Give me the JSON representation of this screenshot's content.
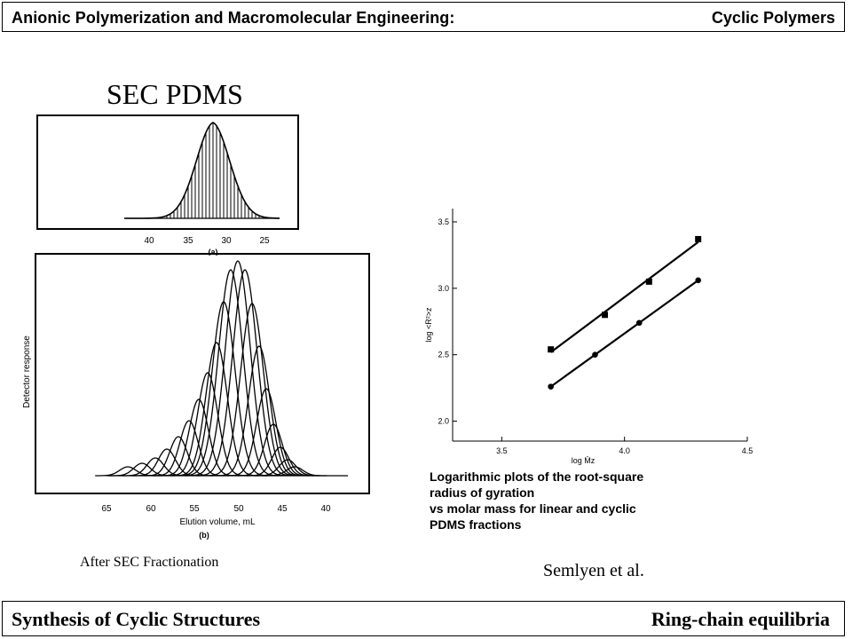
{
  "header": {
    "left": "Anionic Polymerization and Macromolecular Engineering:",
    "right": "Cyclic Polymers"
  },
  "footer": {
    "left": "Synthesis of Cyclic Structures",
    "right": "Ring-chain equilibria"
  },
  "slide_title": "SEC PDMS",
  "panel_a": {
    "label": "(a)",
    "x_ticks": [
      "40",
      "35",
      "30",
      "25"
    ]
  },
  "panel_b": {
    "label": "(b)",
    "ylabel": "Detector response",
    "xlabel": "Elution volume, mL",
    "x_ticks": [
      "65",
      "60",
      "55",
      "50",
      "45",
      "40"
    ]
  },
  "caption_after": "After SEC Fractionation",
  "caption_source": "Semlyen et al.",
  "plot_caption": [
    "Logarithmic plots of the root-square",
    "radius of gyration",
    "vs molar mass for linear and cyclic",
    "PDMS fractions"
  ],
  "colors": {
    "ink": "#000000",
    "background": "#ffffff"
  },
  "chart_data": [
    {
      "type": "line",
      "title": "",
      "xlabel": "log M̄z",
      "ylabel": "log <R²>z",
      "xlim": [
        3.3,
        4.5
      ],
      "ylim": [
        1.85,
        3.6
      ],
      "x_ticks": [
        "3.5",
        "4.0",
        "4.5"
      ],
      "y_ticks": [
        "2.0",
        "2.5",
        "3.0",
        "3.5"
      ],
      "grid": false,
      "series": [
        {
          "marker": "square",
          "x": [
            3.7,
            3.92,
            4.1,
            4.3
          ],
          "y": [
            2.54,
            2.8,
            3.05,
            3.37
          ]
        },
        {
          "marker": "circle",
          "x": [
            3.7,
            3.88,
            4.06,
            4.3
          ],
          "y": [
            2.26,
            2.5,
            2.74,
            3.06
          ]
        }
      ]
    }
  ]
}
